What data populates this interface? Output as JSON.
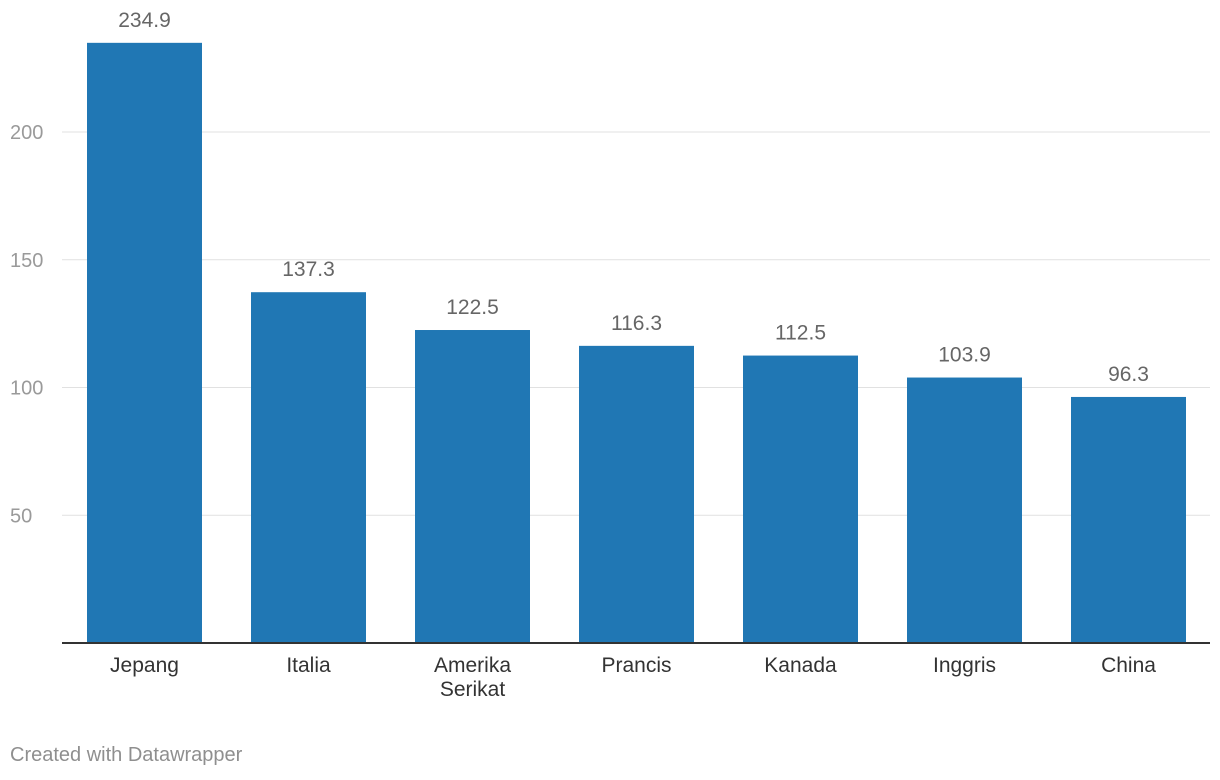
{
  "chart_data": {
    "type": "bar",
    "categories": [
      "Jepang",
      "Italia",
      "Amerika Serikat",
      "Prancis",
      "Kanada",
      "Inggris",
      "China"
    ],
    "category_lines": [
      [
        "Jepang"
      ],
      [
        "Italia"
      ],
      [
        "Amerika",
        "Serikat"
      ],
      [
        "Prancis"
      ],
      [
        "Kanada"
      ],
      [
        "Inggris"
      ],
      [
        "China"
      ]
    ],
    "values": [
      234.9,
      137.3,
      122.5,
      116.3,
      112.5,
      103.9,
      96.3
    ],
    "value_labels": [
      "234.9",
      "137.3",
      "122.5",
      "116.3",
      "112.5",
      "103.9",
      "96.3"
    ],
    "title": "",
    "xlabel": "",
    "ylabel": "",
    "ylim": [
      0,
      240
    ],
    "yticks": [
      50,
      100,
      150,
      200
    ],
    "ytick_labels": [
      "50",
      "100",
      "150",
      "200"
    ],
    "grid": true,
    "colors": {
      "bar": "#2077b4",
      "grid": "#e1e1e1",
      "baseline": "#333333",
      "tick_label": "#9a9a9a",
      "value_label": "#666666",
      "category_label": "#333333"
    }
  },
  "footer": {
    "credit": "Created with Datawrapper"
  }
}
